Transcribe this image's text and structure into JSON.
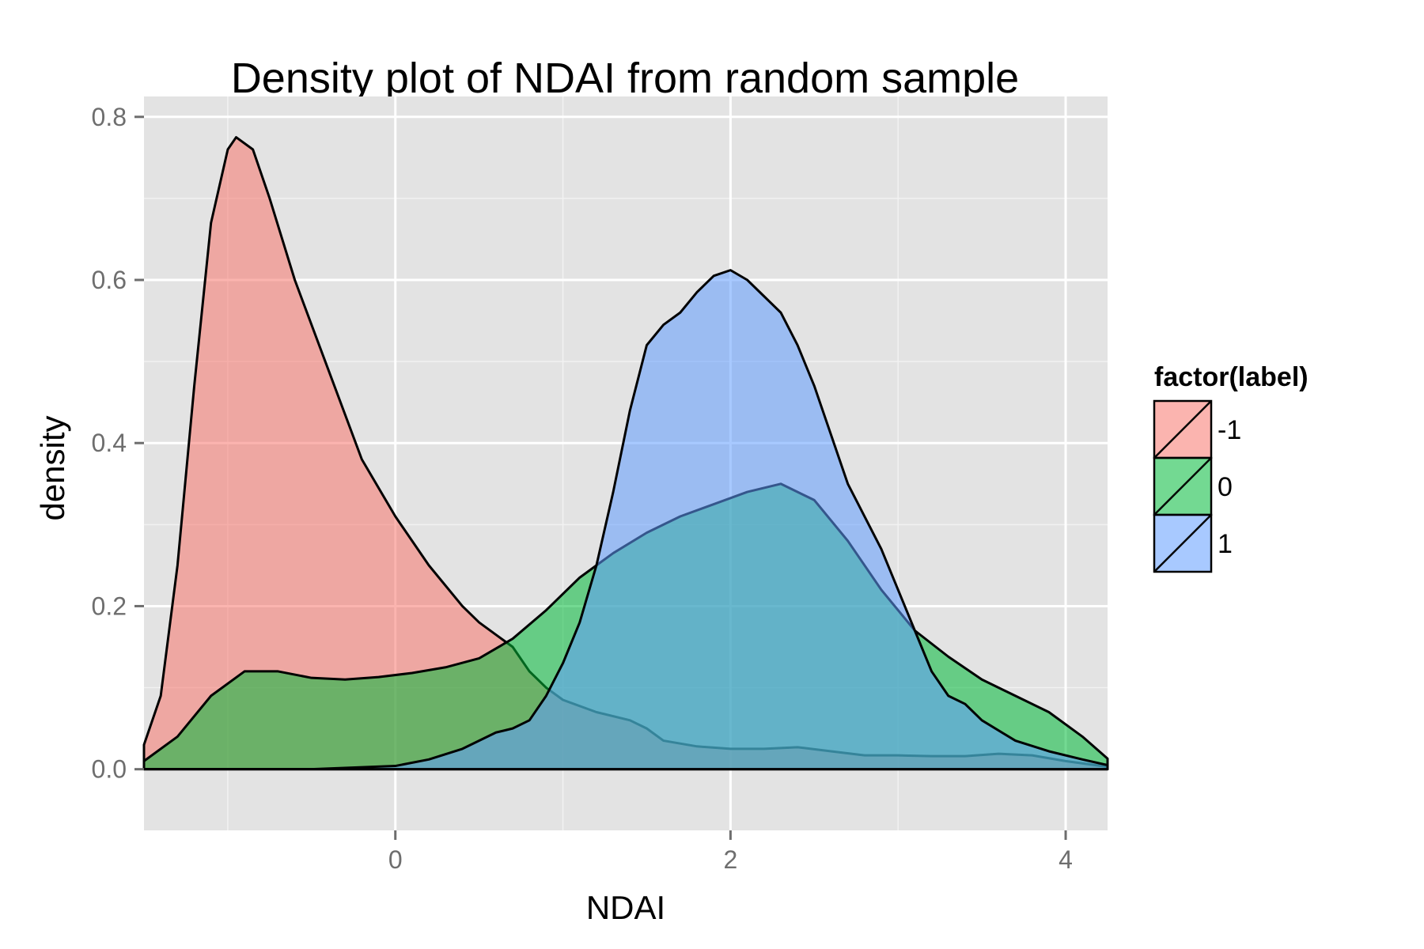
{
  "chart_data": {
    "type": "area",
    "title": "Density plot of NDAI from random sample",
    "xlabel": "NDAI",
    "ylabel": "density",
    "xlim": [
      -1.5,
      4.25
    ],
    "ylim": [
      -0.075,
      0.825
    ],
    "x_ticks": [
      0,
      2,
      4
    ],
    "x_tick_labels": [
      "0",
      "2",
      "4"
    ],
    "y_ticks": [
      0.0,
      0.2,
      0.4,
      0.6,
      0.8
    ],
    "y_tick_labels": [
      "0.0",
      "0.2",
      "0.4",
      "0.6",
      "0.8"
    ],
    "grid": true,
    "legend": {
      "title": "factor(label)",
      "placement": "right"
    },
    "series": [
      {
        "name": "-1",
        "color": "#F8766D",
        "points": [
          [
            -1.5,
            0.03
          ],
          [
            -1.4,
            0.09
          ],
          [
            -1.3,
            0.25
          ],
          [
            -1.2,
            0.47
          ],
          [
            -1.1,
            0.67
          ],
          [
            -1.0,
            0.76
          ],
          [
            -0.95,
            0.775
          ],
          [
            -0.85,
            0.76
          ],
          [
            -0.75,
            0.7
          ],
          [
            -0.6,
            0.6
          ],
          [
            -0.4,
            0.49
          ],
          [
            -0.2,
            0.38
          ],
          [
            0.0,
            0.31
          ],
          [
            0.2,
            0.25
          ],
          [
            0.4,
            0.2
          ],
          [
            0.5,
            0.18
          ],
          [
            0.6,
            0.165
          ],
          [
            0.7,
            0.15
          ],
          [
            0.8,
            0.12
          ],
          [
            0.9,
            0.1
          ],
          [
            1.0,
            0.085
          ],
          [
            1.2,
            0.07
          ],
          [
            1.4,
            0.06
          ],
          [
            1.5,
            0.05
          ],
          [
            1.6,
            0.035
          ],
          [
            1.8,
            0.028
          ],
          [
            2.0,
            0.025
          ],
          [
            2.2,
            0.025
          ],
          [
            2.4,
            0.027
          ],
          [
            2.6,
            0.022
          ],
          [
            2.8,
            0.017
          ],
          [
            3.0,
            0.017
          ],
          [
            3.2,
            0.016
          ],
          [
            3.4,
            0.016
          ],
          [
            3.6,
            0.019
          ],
          [
            3.8,
            0.017
          ],
          [
            4.0,
            0.01
          ],
          [
            4.25,
            0.003
          ]
        ]
      },
      {
        "name": "0",
        "color": "#00BA38",
        "points": [
          [
            -1.5,
            0.01
          ],
          [
            -1.3,
            0.04
          ],
          [
            -1.1,
            0.09
          ],
          [
            -0.9,
            0.12
          ],
          [
            -0.7,
            0.12
          ],
          [
            -0.5,
            0.112
          ],
          [
            -0.3,
            0.11
          ],
          [
            -0.1,
            0.113
          ],
          [
            0.1,
            0.118
          ],
          [
            0.3,
            0.125
          ],
          [
            0.5,
            0.136
          ],
          [
            0.7,
            0.16
          ],
          [
            0.9,
            0.195
          ],
          [
            1.1,
            0.235
          ],
          [
            1.3,
            0.265
          ],
          [
            1.5,
            0.29
          ],
          [
            1.7,
            0.31
          ],
          [
            1.9,
            0.325
          ],
          [
            2.1,
            0.34
          ],
          [
            2.3,
            0.35
          ],
          [
            2.5,
            0.33
          ],
          [
            2.7,
            0.28
          ],
          [
            2.9,
            0.22
          ],
          [
            3.1,
            0.17
          ],
          [
            3.3,
            0.138
          ],
          [
            3.5,
            0.11
          ],
          [
            3.7,
            0.09
          ],
          [
            3.9,
            0.07
          ],
          [
            4.1,
            0.04
          ],
          [
            4.25,
            0.013
          ]
        ]
      },
      {
        "name": "1",
        "color": "#619CFF",
        "points": [
          [
            -1.5,
            0.0
          ],
          [
            -0.5,
            0.0
          ],
          [
            0.0,
            0.004
          ],
          [
            0.2,
            0.012
          ],
          [
            0.4,
            0.025
          ],
          [
            0.6,
            0.045
          ],
          [
            0.7,
            0.05
          ],
          [
            0.8,
            0.06
          ],
          [
            0.9,
            0.09
          ],
          [
            1.0,
            0.13
          ],
          [
            1.1,
            0.18
          ],
          [
            1.2,
            0.25
          ],
          [
            1.3,
            0.34
          ],
          [
            1.4,
            0.44
          ],
          [
            1.5,
            0.52
          ],
          [
            1.6,
            0.545
          ],
          [
            1.7,
            0.56
          ],
          [
            1.8,
            0.585
          ],
          [
            1.9,
            0.605
          ],
          [
            2.0,
            0.612
          ],
          [
            2.1,
            0.6
          ],
          [
            2.2,
            0.58
          ],
          [
            2.3,
            0.56
          ],
          [
            2.4,
            0.52
          ],
          [
            2.5,
            0.47
          ],
          [
            2.6,
            0.41
          ],
          [
            2.7,
            0.35
          ],
          [
            2.8,
            0.31
          ],
          [
            2.9,
            0.27
          ],
          [
            3.0,
            0.22
          ],
          [
            3.1,
            0.17
          ],
          [
            3.2,
            0.12
          ],
          [
            3.3,
            0.09
          ],
          [
            3.4,
            0.08
          ],
          [
            3.5,
            0.06
          ],
          [
            3.7,
            0.035
          ],
          [
            3.9,
            0.022
          ],
          [
            4.1,
            0.012
          ],
          [
            4.25,
            0.005
          ]
        ]
      }
    ]
  }
}
